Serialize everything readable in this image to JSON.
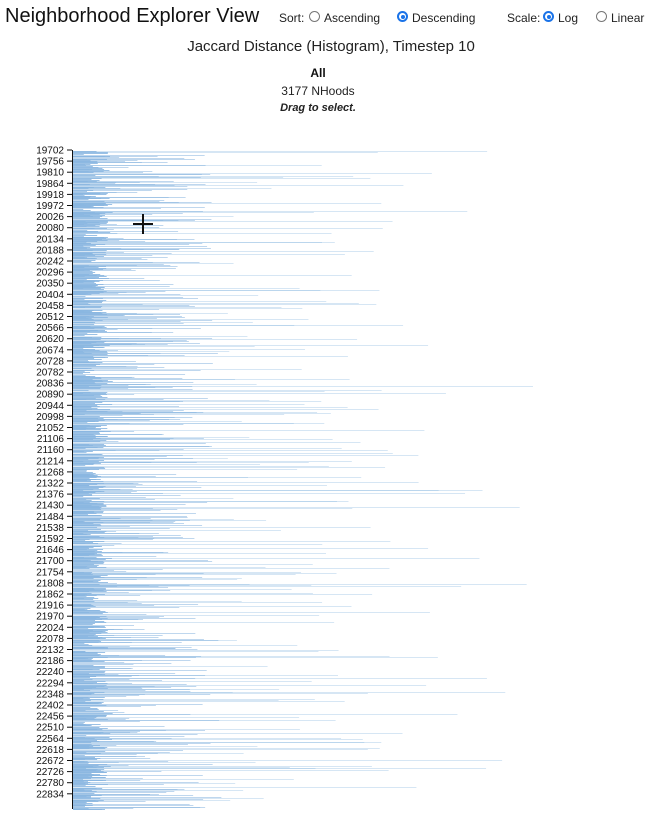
{
  "app_title": "Neighborhood Explorer View",
  "controls": {
    "sort_label": "Sort:",
    "sort_options": [
      "Ascending",
      "Descending"
    ],
    "sort_selected": "Descending",
    "scale_label": "Scale:",
    "scale_options": [
      "Log",
      "Linear"
    ],
    "scale_selected": "Log"
  },
  "group_label": "All",
  "count_label": "3177 NHoods",
  "hint_label": "Drag to select.",
  "colors": {
    "bar": "#8ab6e0",
    "axis": "#111111",
    "radio_accent": "#1a73e8"
  },
  "chart_data": {
    "type": "bar",
    "orientation": "horizontal",
    "title": "Jaccard Distance (Histogram), Timestep 10",
    "subtitle": "",
    "xlabel": "",
    "ylabel": "",
    "x_scale": "log",
    "y_range": [
      19702,
      22860
    ],
    "y_tick_step": 54,
    "y_ticks": [
      19702,
      19756,
      19810,
      19864,
      19918,
      19972,
      20026,
      20080,
      20134,
      20188,
      20242,
      20296,
      20350,
      20404,
      20458,
      20512,
      20566,
      20620,
      20674,
      20728,
      20782,
      20836,
      20890,
      20944,
      20998,
      21052,
      21106,
      21160,
      21214,
      21268,
      21322,
      21376,
      21430,
      21484,
      21538,
      21592,
      21646,
      21700,
      21754,
      21808,
      21862,
      21916,
      21970,
      22024,
      22078,
      22132,
      22186,
      22240,
      22294,
      22348,
      22402,
      22456,
      22510,
      22564,
      22618,
      22672,
      22726,
      22780,
      22834
    ],
    "grid": false,
    "legend": "none"
  }
}
